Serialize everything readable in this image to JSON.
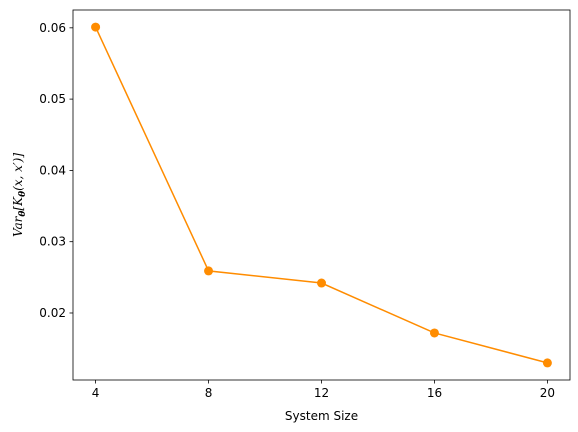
{
  "chart_data": {
    "type": "line",
    "title": "",
    "xlabel": "System Size",
    "ylabel": "Var_θ[K_θ(x, x′)]",
    "x": [
      4,
      8,
      12,
      16,
      20
    ],
    "xticks": [
      4,
      8,
      12,
      16,
      20
    ],
    "xtick_labels": [
      "4",
      "8",
      "12",
      "16",
      "20"
    ],
    "yticks": [
      0.02,
      0.03,
      0.04,
      0.05,
      0.06
    ],
    "ytick_labels": [
      "0.02",
      "0.03",
      "0.04",
      "0.05",
      "0.06"
    ],
    "xlim": [
      3.2,
      20.8
    ],
    "ylim": [
      0.0106,
      0.0625
    ],
    "grid": false,
    "series": [
      {
        "values": [
          0.0601,
          0.0259,
          0.0242,
          0.0172,
          0.013
        ],
        "color": "#ff8c00",
        "marker": "circle"
      }
    ]
  }
}
